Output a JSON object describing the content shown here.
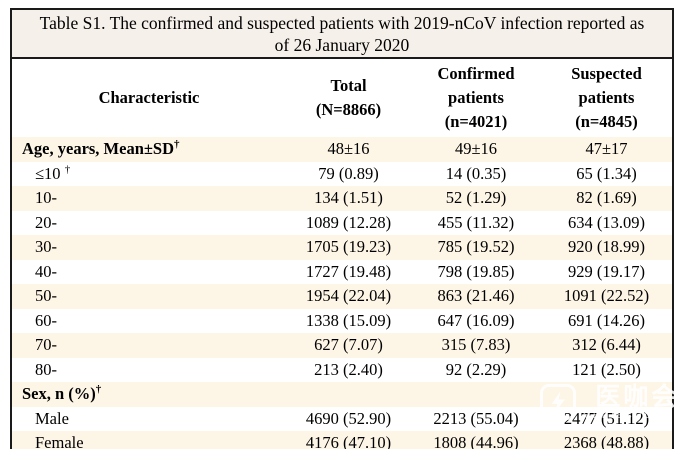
{
  "title": {
    "line1": "Table S1. The confirmed and suspected patients with 2019-nCoV infection reported as",
    "line2": "of 26 January 2020"
  },
  "table": {
    "headers": [
      {
        "lines": [
          "Characteristic"
        ]
      },
      {
        "lines": [
          "Total",
          "(N=8866)"
        ]
      },
      {
        "lines": [
          "Confirmed",
          "patients",
          "(n=4021)"
        ]
      },
      {
        "lines": [
          "Suspected",
          "patients",
          "(n=4845)"
        ]
      }
    ],
    "rows": [
      {
        "label": "Age, years, Mean±SD",
        "dagger": "†",
        "style": "section",
        "values": [
          "48±16",
          "49±16",
          "47±17"
        ]
      },
      {
        "label": "≤10 ",
        "dagger": "†",
        "style": "sub",
        "values": [
          "79 (0.89)",
          "14 (0.35)",
          "65 (1.34)"
        ]
      },
      {
        "label": "10-",
        "dagger": "",
        "style": "sub",
        "values": [
          "134 (1.51)",
          "52 (1.29)",
          "82 (1.69)"
        ]
      },
      {
        "label": "20-",
        "dagger": "",
        "style": "sub",
        "values": [
          "1089 (12.28)",
          "455 (11.32)",
          "634 (13.09)"
        ]
      },
      {
        "label": "30-",
        "dagger": "",
        "style": "sub",
        "values": [
          "1705 (19.23)",
          "785 (19.52)",
          "920 (18.99)"
        ]
      },
      {
        "label": "40-",
        "dagger": "",
        "style": "sub",
        "values": [
          "1727 (19.48)",
          "798 (19.85)",
          "929 (19.17)"
        ]
      },
      {
        "label": "50-",
        "dagger": "",
        "style": "sub",
        "values": [
          "1954 (22.04)",
          "863 (21.46)",
          "1091 (22.52)"
        ]
      },
      {
        "label": "60-",
        "dagger": "",
        "style": "sub",
        "values": [
          "1338 (15.09)",
          "647 (16.09)",
          "691 (14.26)"
        ]
      },
      {
        "label": "70-",
        "dagger": "",
        "style": "sub",
        "values": [
          "627 (7.07)",
          "315 (7.83)",
          "312 (6.44)"
        ]
      },
      {
        "label": "80-",
        "dagger": "",
        "style": "sub",
        "values": [
          "213 (2.40)",
          "92 (2.29)",
          "121 (2.50)"
        ]
      },
      {
        "label": "Sex, n (%)",
        "dagger": "†",
        "style": "section",
        "values": [
          "",
          "",
          ""
        ]
      },
      {
        "label": "Male",
        "dagger": "",
        "style": "sub",
        "values": [
          "4690 (52.90)",
          "2213 (55.04)",
          "2477 (51.12)"
        ]
      },
      {
        "label": "Female",
        "dagger": "",
        "style": "sub",
        "values": [
          "4176 (47.10)",
          "1808 (44.96)",
          "2368 (48.88)"
        ]
      }
    ]
  },
  "watermark": {
    "chinese": "医咖会",
    "latin": "MEDIECOGROUP"
  },
  "colors": {
    "stripe": "#fdf5e6",
    "title_background": "#f6f0ea",
    "border": "#1a1a1a"
  }
}
